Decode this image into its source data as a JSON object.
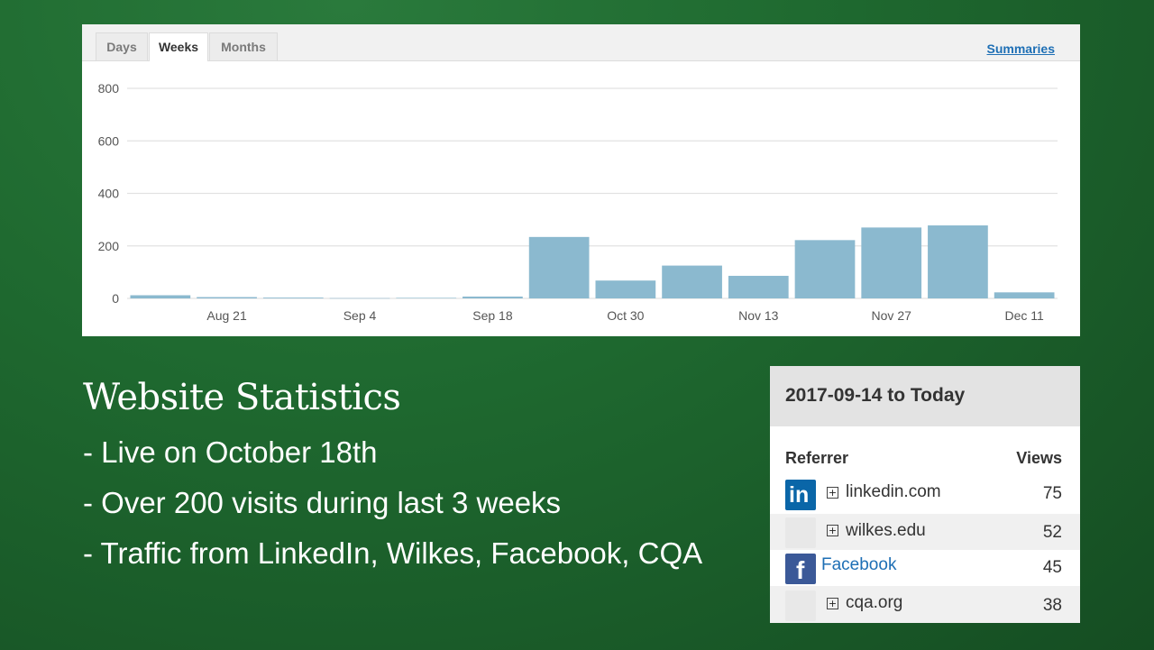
{
  "chart_panel": {
    "tabs": [
      {
        "label": "Days",
        "active": false
      },
      {
        "label": "Weeks",
        "active": true
      },
      {
        "label": "Months",
        "active": false
      }
    ],
    "summaries_link": "Summaries"
  },
  "chart_data": {
    "type": "bar",
    "bar_color": "#8bb9cf",
    "grid": true,
    "ylim": [
      0,
      800
    ],
    "yticks": [
      "0",
      "200",
      "400",
      "600",
      "800"
    ],
    "values": [
      12,
      5,
      3,
      1,
      2,
      7,
      234,
      68,
      125,
      86,
      222,
      270,
      278,
      23
    ],
    "xtick_labels": [
      {
        "bar": 1.5,
        "label": "Aug 21"
      },
      {
        "bar": 3.5,
        "label": "Sep 4"
      },
      {
        "bar": 5.5,
        "label": "Sep 18"
      },
      {
        "bar": 7.5,
        "label": "Oct 30"
      },
      {
        "bar": 9.5,
        "label": "Nov 13"
      },
      {
        "bar": 11.5,
        "label": "Nov 27"
      },
      {
        "bar": 13.5,
        "label": "Dec 11"
      }
    ]
  },
  "slide": {
    "title": "Website Statistics",
    "bullets": [
      "- Live on October 18th",
      "- Over 200 visits during last 3 weeks",
      "- Traffic from LinkedIn, Wilkes, Facebook, CQA"
    ]
  },
  "referrers": {
    "date_range": "2017-09-14 to Today",
    "col_referrer": "Referrer",
    "col_views": "Views",
    "rows": [
      {
        "logo": "linkedin-icon",
        "logo_text": "in",
        "expandable": true,
        "name": "linkedin.com",
        "views": "75",
        "is_link": false
      },
      {
        "logo": "blank",
        "expandable": true,
        "name": "wilkes.edu",
        "views": "52",
        "is_link": false
      },
      {
        "logo": "facebook-icon",
        "logo_text": "f",
        "expandable": false,
        "name": "Facebook",
        "views": "45",
        "is_link": true
      },
      {
        "logo": "blank",
        "expandable": true,
        "name": "cqa.org",
        "views": "38",
        "is_link": false
      }
    ],
    "linkedin_color": "#0a66a8",
    "facebook_color": "#3b5998"
  }
}
